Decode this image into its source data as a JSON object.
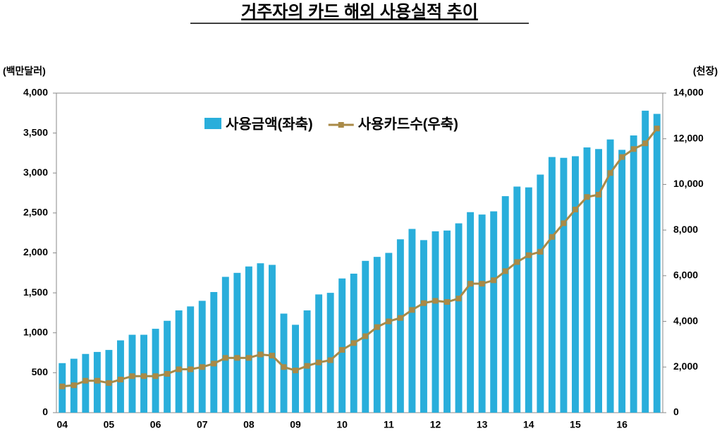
{
  "chart_data": {
    "type": "bar",
    "title": "거주자의 카드 해외 사용실적 추이",
    "y_axis_label": "(백만달러)",
    "y2_axis_label": "(천장)",
    "categories": [
      "04",
      null,
      null,
      null,
      "05",
      null,
      null,
      null,
      "06",
      null,
      null,
      null,
      "07",
      null,
      null,
      null,
      "08",
      null,
      null,
      null,
      "09",
      null,
      null,
      null,
      "10",
      null,
      null,
      null,
      "11",
      null,
      null,
      null,
      "12",
      null,
      null,
      null,
      "13",
      null,
      null,
      null,
      "14",
      null,
      null,
      null,
      "15",
      null,
      null,
      null,
      "16",
      null,
      null,
      null
    ],
    "series": [
      {
        "name": "사용금액(좌축)",
        "type": "bar",
        "color": "#29aedb",
        "values": [
          620,
          675,
          735,
          760,
          785,
          905,
          975,
          975,
          1050,
          1150,
          1280,
          1330,
          1400,
          1510,
          1700,
          1750,
          1830,
          1870,
          1850,
          1240,
          1100,
          1280,
          1480,
          1500,
          1680,
          1740,
          1900,
          1950,
          2000,
          2170,
          2300,
          2160,
          2270,
          2280,
          2370,
          2510,
          2480,
          2520,
          2710,
          2830,
          2820,
          2980,
          3200,
          3190,
          3210,
          3320,
          3300,
          3420,
          3290,
          3470,
          3780,
          3740
        ]
      },
      {
        "name": "사용카드수(우축)",
        "type": "line",
        "axis": "y2",
        "color": "#a98a47",
        "values": [
          1150,
          1200,
          1400,
          1400,
          1300,
          1450,
          1600,
          1600,
          1600,
          1700,
          1900,
          1900,
          2000,
          2150,
          2400,
          2400,
          2400,
          2550,
          2500,
          2000,
          1850,
          2050,
          2200,
          2300,
          2750,
          3050,
          3350,
          3750,
          4000,
          4150,
          4500,
          4800,
          4900,
          4850,
          5000,
          5650,
          5650,
          5800,
          6200,
          6600,
          6900,
          7050,
          7700,
          8300,
          8900,
          9450,
          9550,
          10500,
          11200,
          11550,
          11800,
          12450
        ]
      }
    ],
    "ylim": [
      0,
      4000
    ],
    "yticks": [
      0,
      500,
      {
        "value": 1000,
        "label": "1,000"
      },
      {
        "value": 1500,
        "label": "1,500"
      },
      {
        "value": 2000,
        "label": "2,000"
      },
      {
        "value": 2500,
        "label": "2,500"
      },
      {
        "value": 3000,
        "label": "3,000"
      },
      {
        "value": 3500,
        "label": "3,500"
      },
      {
        "value": 4000,
        "label": "4,000"
      }
    ],
    "y2lim": [
      0,
      14000
    ],
    "y2ticks": [
      0,
      {
        "value": 2000,
        "label": "2,000"
      },
      {
        "value": 4000,
        "label": "4,000"
      },
      {
        "value": 6000,
        "label": "6,000"
      },
      {
        "value": 8000,
        "label": "8,000"
      },
      {
        "value": 10000,
        "label": "10,000"
      },
      {
        "value": 12000,
        "label": "12,000"
      },
      {
        "value": 14000,
        "label": "14,000"
      }
    ]
  }
}
